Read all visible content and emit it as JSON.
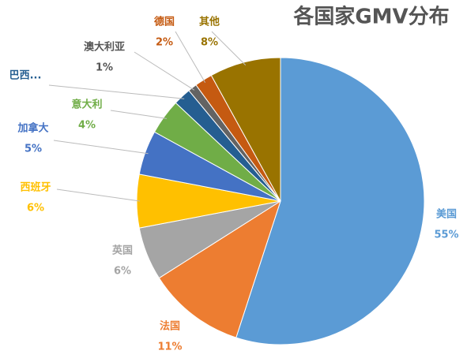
{
  "chart_data": {
    "type": "pie",
    "title": "各国家GMV分布",
    "categories": [
      "美国",
      "法国",
      "英国",
      "西班牙",
      "加拿大",
      "意大利",
      "巴西...",
      "澳大利亚",
      "德国",
      "其他"
    ],
    "values": [
      55,
      11,
      6,
      6,
      5,
      4,
      2,
      1,
      2,
      8
    ],
    "value_labels": [
      "55%",
      "11%",
      "6%",
      "6%",
      "5%",
      "4%",
      null,
      "1%",
      "2%",
      "8%"
    ],
    "colors": [
      "#5b9bd5",
      "#ed7d31",
      "#a5a5a5",
      "#ffc000",
      "#4472c4",
      "#70ad47",
      "#255e91",
      "#636363",
      "#c55a11",
      "#997300"
    ],
    "label_colors": [
      "#5b9bd5",
      "#ed7d31",
      "#a5a5a5",
      "#ffc000",
      "#4472c4",
      "#70ad47",
      "#255e91",
      "#555555",
      "#c55a11",
      "#997300"
    ]
  }
}
